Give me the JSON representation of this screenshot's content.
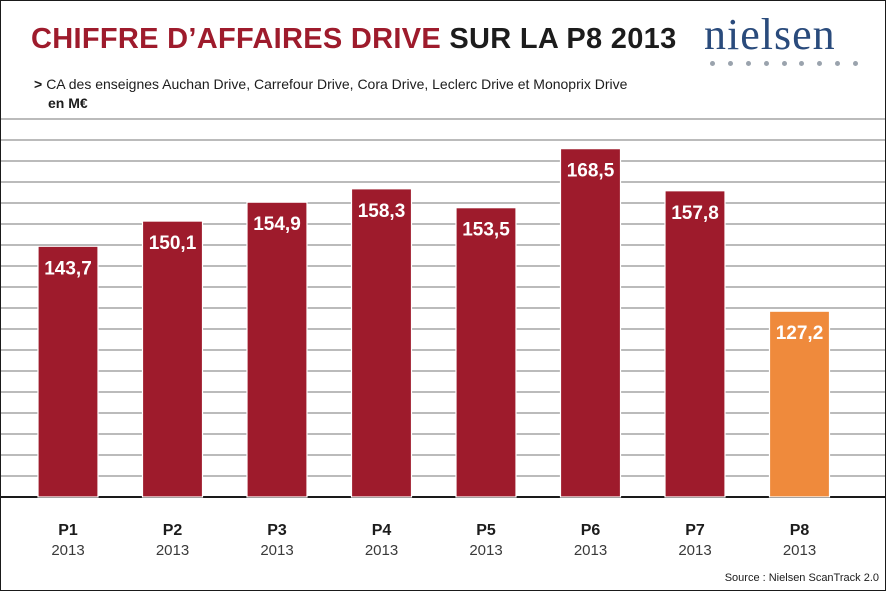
{
  "title_part1": "CHIFFRE D’AFFAIRES DRIVE",
  "title_part2": "SUR LA P8 2013",
  "subtitle_arrow": ">",
  "subtitle": "CA des enseignes Auchan Drive, Carrefour Drive, Cora Drive, Leclerc Drive et Monoprix Drive",
  "unit": "en M€",
  "logo_text": "nielsen",
  "source": "Source : Nielsen ScanTrack 2.0",
  "colors": {
    "bar": "#9e1b2c",
    "highlight_bar": "#ef8a3c",
    "title_accent": "#9e1b2c",
    "grid": "#4a4a4a"
  },
  "chart_data": {
    "type": "bar",
    "title": "CHIFFRE D’AFFAIRES DRIVE SUR LA P8 2013",
    "ylabel": "en M€",
    "categories": [
      "P1",
      "P2",
      "P3",
      "P4",
      "P5",
      "P6",
      "P7",
      "P8"
    ],
    "category_sublabels": [
      "2013",
      "2013",
      "2013",
      "2013",
      "2013",
      "2013",
      "2013",
      "2013"
    ],
    "values": [
      143.7,
      150.1,
      154.9,
      158.3,
      153.5,
      168.5,
      157.8,
      127.2
    ],
    "value_labels": [
      "143,7",
      "150,1",
      "154,9",
      "158,3",
      "153,5",
      "168,5",
      "157,8",
      "127,2"
    ],
    "highlight_index": 7,
    "ylim": [
      80,
      174
    ],
    "grid": true
  }
}
